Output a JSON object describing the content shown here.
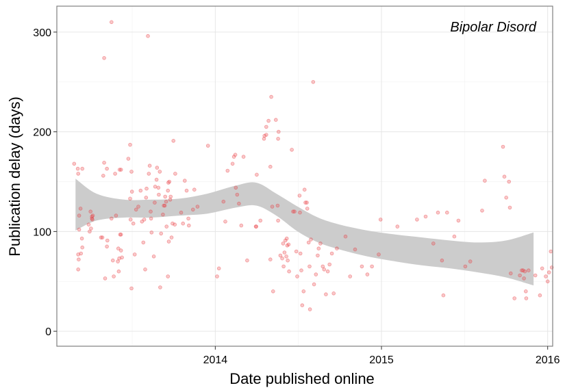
{
  "chart_data": {
    "type": "scatter",
    "title": "",
    "annotation": "Bipolar Disord",
    "xlabel": "Date published online",
    "ylabel": "Publication delay (days)",
    "xlim": [
      "2013-01-18",
      "2016-01-12"
    ],
    "ylim": [
      -15,
      326
    ],
    "x_ticks": [
      {
        "date": "2014-01-01",
        "label": "2014"
      },
      {
        "date": "2015-01-01",
        "label": "2015"
      },
      {
        "date": "2016-01-01",
        "label": "2016"
      }
    ],
    "y_ticks": [
      0,
      100,
      200,
      300
    ],
    "grid": true,
    "point_color": "#e8383d",
    "band_color": "#cccccc",
    "border_color": "#7f7f7f",
    "smooth_band": [
      [
        "2013-02-28",
        101,
        153
      ],
      [
        "2013-04-15",
        111,
        138
      ],
      [
        "2013-06-15",
        114,
        132
      ],
      [
        "2013-08-15",
        114,
        132
      ],
      [
        "2013-10-15",
        116,
        133
      ],
      [
        "2013-12-15",
        118,
        138
      ],
      [
        "2014-02-15",
        124,
        146
      ],
      [
        "2014-04-01",
        126,
        149
      ],
      [
        "2014-05-15",
        116,
        138
      ],
      [
        "2014-07-01",
        100,
        125
      ],
      [
        "2014-08-15",
        89,
        114
      ],
      [
        "2014-10-01",
        82,
        107
      ],
      [
        "2014-12-01",
        75,
        101
      ],
      [
        "2015-02-01",
        70,
        97
      ],
      [
        "2015-04-01",
        66,
        94
      ],
      [
        "2015-06-01",
        63,
        91
      ],
      [
        "2015-08-01",
        59,
        89
      ],
      [
        "2015-10-01",
        54,
        91
      ],
      [
        "2015-12-01",
        46,
        99
      ]
    ],
    "points": [
      [
        "2013-02-25",
        168
      ],
      [
        "2013-03-05",
        163
      ],
      [
        "2013-03-06",
        158
      ],
      [
        "2013-03-08",
        116
      ],
      [
        "2013-03-08",
        102
      ],
      [
        "2013-03-06",
        77
      ],
      [
        "2013-03-07",
        72
      ],
      [
        "2013-03-06",
        62
      ],
      [
        "2013-03-11",
        123
      ],
      [
        "2013-03-12",
        78
      ],
      [
        "2013-03-15",
        163
      ],
      [
        "2013-03-14",
        93
      ],
      [
        "2013-03-15",
        84
      ],
      [
        "2013-03-29",
        107
      ],
      [
        "2013-03-31",
        100
      ],
      [
        "2013-04-02",
        120
      ],
      [
        "2013-04-03",
        103
      ],
      [
        "2013-04-05",
        115
      ],
      [
        "2013-04-06",
        112
      ],
      [
        "2013-04-07",
        116
      ],
      [
        "2013-04-05",
        113
      ],
      [
        "2013-04-25",
        94
      ],
      [
        "2013-04-28",
        94
      ],
      [
        "2013-04-30",
        156
      ],
      [
        "2013-05-02",
        169
      ],
      [
        "2013-05-02",
        274
      ],
      [
        "2013-05-08",
        163
      ],
      [
        "2013-05-09",
        91
      ],
      [
        "2013-05-04",
        53
      ],
      [
        "2013-05-08",
        85
      ],
      [
        "2013-05-18",
        310
      ],
      [
        "2013-05-18",
        113
      ],
      [
        "2013-05-21",
        71
      ],
      [
        "2013-05-23",
        55
      ],
      [
        "2013-05-26",
        158
      ],
      [
        "2013-05-28",
        116
      ],
      [
        "2013-06-05",
        162
      ],
      [
        "2013-06-08",
        162
      ],
      [
        "2013-06-08",
        97
      ],
      [
        "2013-06-10",
        74
      ],
      [
        "2013-06-06",
        97
      ],
      [
        "2013-06-08",
        81
      ],
      [
        "2013-06-04",
        73
      ],
      [
        "2013-06-03",
        60
      ],
      [
        "2013-06-01",
        70
      ],
      [
        "2013-06-02",
        83
      ],
      [
        "2013-06-24",
        173
      ],
      [
        "2013-06-28",
        133
      ],
      [
        "2013-06-29",
        112
      ],
      [
        "2013-07-02",
        140
      ],
      [
        "2013-07-01",
        160
      ],
      [
        "2013-06-28",
        187
      ],
      [
        "2013-07-01",
        43
      ],
      [
        "2013-07-05",
        108
      ],
      [
        "2013-07-08",
        77
      ],
      [
        "2013-07-11",
        122
      ],
      [
        "2013-07-16",
        125
      ],
      [
        "2013-07-21",
        141
      ],
      [
        "2013-07-24",
        110
      ],
      [
        "2013-07-27",
        89
      ],
      [
        "2013-07-29",
        112
      ],
      [
        "2013-07-31",
        62
      ],
      [
        "2013-08-02",
        134
      ],
      [
        "2013-08-03",
        143
      ],
      [
        "2013-08-06",
        296
      ],
      [
        "2013-08-08",
        158
      ],
      [
        "2013-08-10",
        166
      ],
      [
        "2013-08-12",
        120
      ],
      [
        "2013-08-13",
        113
      ],
      [
        "2013-08-14",
        99
      ],
      [
        "2013-08-19",
        75
      ],
      [
        "2013-08-21",
        129
      ],
      [
        "2013-08-22",
        145
      ],
      [
        "2013-08-25",
        152
      ],
      [
        "2013-08-26",
        164
      ],
      [
        "2013-08-29",
        144
      ],
      [
        "2013-08-30",
        137
      ],
      [
        "2013-09-01",
        160
      ],
      [
        "2013-09-02",
        44
      ],
      [
        "2013-09-04",
        98
      ],
      [
        "2013-09-08",
        117
      ],
      [
        "2013-09-10",
        126
      ],
      [
        "2013-09-12",
        126
      ],
      [
        "2013-09-13",
        135
      ],
      [
        "2013-09-15",
        130
      ],
      [
        "2013-09-16",
        105
      ],
      [
        "2013-09-20",
        149
      ],
      [
        "2013-09-19",
        141
      ],
      [
        "2013-09-22",
        150
      ],
      [
        "2013-09-24",
        132
      ],
      [
        "2013-09-19",
        55
      ],
      [
        "2013-09-21",
        90
      ],
      [
        "2013-09-25",
        135
      ],
      [
        "2013-09-27",
        94
      ],
      [
        "2013-09-29",
        108
      ],
      [
        "2013-10-01",
        191
      ],
      [
        "2013-10-05",
        158
      ],
      [
        "2013-10-04",
        107
      ],
      [
        "2013-10-18",
        119
      ],
      [
        "2013-10-22",
        108
      ],
      [
        "2013-10-26",
        151
      ],
      [
        "2013-10-30",
        141
      ],
      [
        "2013-11-03",
        113
      ],
      [
        "2013-11-04",
        106
      ],
      [
        "2013-11-13",
        122
      ],
      [
        "2013-11-16",
        142
      ],
      [
        "2013-11-23",
        125
      ],
      [
        "2013-12-16",
        186
      ],
      [
        "2014-01-05",
        55
      ],
      [
        "2014-01-09",
        63
      ],
      [
        "2014-01-19",
        130
      ],
      [
        "2014-01-23",
        110
      ],
      [
        "2014-01-28",
        161
      ],
      [
        "2014-02-11",
        175
      ],
      [
        "2014-02-08",
        168
      ],
      [
        "2014-02-14",
        177
      ],
      [
        "2014-02-15",
        144
      ],
      [
        "2014-02-18",
        137
      ],
      [
        "2014-02-22",
        128
      ],
      [
        "2014-02-27",
        106
      ],
      [
        "2014-03-04",
        175
      ],
      [
        "2014-03-12",
        71
      ],
      [
        "2014-03-31",
        105
      ],
      [
        "2014-04-01",
        105
      ],
      [
        "2014-04-02",
        157
      ],
      [
        "2014-04-10",
        111
      ],
      [
        "2014-04-18",
        193
      ],
      [
        "2014-04-19",
        196
      ],
      [
        "2014-04-23",
        197
      ],
      [
        "2014-04-23",
        205
      ],
      [
        "2014-04-28",
        211
      ],
      [
        "2014-05-04",
        235
      ],
      [
        "2014-05-02",
        165
      ],
      [
        "2014-05-02",
        72
      ],
      [
        "2014-05-06",
        125
      ],
      [
        "2014-05-14",
        212
      ],
      [
        "2014-05-20",
        200
      ],
      [
        "2014-05-19",
        193
      ],
      [
        "2014-05-18",
        126
      ],
      [
        "2014-05-19",
        111
      ],
      [
        "2014-05-24",
        76
      ],
      [
        "2014-05-30",
        88
      ],
      [
        "2014-06-04",
        91
      ],
      [
        "2014-06-07",
        93
      ],
      [
        "2014-06-11",
        87
      ],
      [
        "2014-05-08",
        40
      ],
      [
        "2014-05-28",
        73
      ],
      [
        "2014-05-31",
        65
      ],
      [
        "2014-06-02",
        79
      ],
      [
        "2014-06-06",
        75
      ],
      [
        "2014-06-08",
        86
      ],
      [
        "2014-06-09",
        71
      ],
      [
        "2014-06-12",
        60
      ],
      [
        "2014-06-18",
        182
      ],
      [
        "2014-06-24",
        120
      ],
      [
        "2014-06-21",
        120
      ],
      [
        "2014-06-28",
        80
      ],
      [
        "2014-06-30",
        55
      ],
      [
        "2014-07-05",
        136
      ],
      [
        "2014-07-06",
        119
      ],
      [
        "2014-07-07",
        78
      ],
      [
        "2014-07-09",
        61
      ],
      [
        "2014-07-11",
        26
      ],
      [
        "2014-07-14",
        40
      ],
      [
        "2014-07-16",
        142
      ],
      [
        "2014-07-18",
        129
      ],
      [
        "2014-07-21",
        129
      ],
      [
        "2014-07-22",
        123
      ],
      [
        "2014-07-25",
        89
      ],
      [
        "2014-07-27",
        65
      ],
      [
        "2014-07-30",
        92
      ],
      [
        "2014-07-28",
        22
      ],
      [
        "2014-08-04",
        250
      ],
      [
        "2014-08-06",
        47
      ],
      [
        "2014-08-10",
        57
      ],
      [
        "2014-08-14",
        76
      ],
      [
        "2014-08-16",
        83
      ],
      [
        "2014-08-20",
        88
      ],
      [
        "2014-08-25",
        65
      ],
      [
        "2014-08-28",
        62
      ],
      [
        "2014-09-01",
        37
      ],
      [
        "2014-09-05",
        60
      ],
      [
        "2014-09-09",
        67
      ],
      [
        "2014-09-14",
        78
      ],
      [
        "2014-09-18",
        38
      ],
      [
        "2014-09-25",
        83
      ],
      [
        "2014-10-14",
        95
      ],
      [
        "2014-10-24",
        55
      ],
      [
        "2014-11-04",
        82
      ],
      [
        "2014-11-19",
        65
      ],
      [
        "2014-12-01",
        57
      ],
      [
        "2014-12-11",
        65
      ],
      [
        "2014-12-26",
        77
      ],
      [
        "2014-12-30",
        112
      ],
      [
        "2015-02-05",
        105
      ],
      [
        "2015-03-20",
        112
      ],
      [
        "2015-04-08",
        115
      ],
      [
        "2015-04-25",
        88
      ],
      [
        "2015-05-05",
        119
      ],
      [
        "2015-05-14",
        71
      ],
      [
        "2015-05-17",
        36
      ],
      [
        "2015-05-25",
        119
      ],
      [
        "2015-06-10",
        95
      ],
      [
        "2015-06-19",
        111
      ],
      [
        "2015-07-04",
        65
      ],
      [
        "2015-07-15",
        70
      ],
      [
        "2015-08-10",
        121
      ],
      [
        "2015-08-16",
        151
      ],
      [
        "2015-09-25",
        185
      ],
      [
        "2015-09-28",
        155
      ],
      [
        "2015-10-02",
        134
      ],
      [
        "2015-10-08",
        150
      ],
      [
        "2015-10-10",
        124
      ],
      [
        "2015-10-12",
        58
      ],
      [
        "2015-10-20",
        33
      ],
      [
        "2015-11-01",
        56
      ],
      [
        "2015-11-05",
        61
      ],
      [
        "2015-11-08",
        61
      ],
      [
        "2015-11-10",
        53
      ],
      [
        "2015-11-12",
        60
      ],
      [
        "2015-11-14",
        40
      ],
      [
        "2015-11-15",
        33
      ],
      [
        "2015-11-20",
        61
      ],
      [
        "2015-12-05",
        56
      ],
      [
        "2015-12-15",
        36
      ],
      [
        "2015-12-20",
        63
      ],
      [
        "2015-12-28",
        55
      ],
      [
        "2016-01-01",
        50
      ],
      [
        "2016-01-04",
        59
      ],
      [
        "2016-01-08",
        80
      ],
      [
        "2016-01-10",
        64
      ]
    ]
  }
}
